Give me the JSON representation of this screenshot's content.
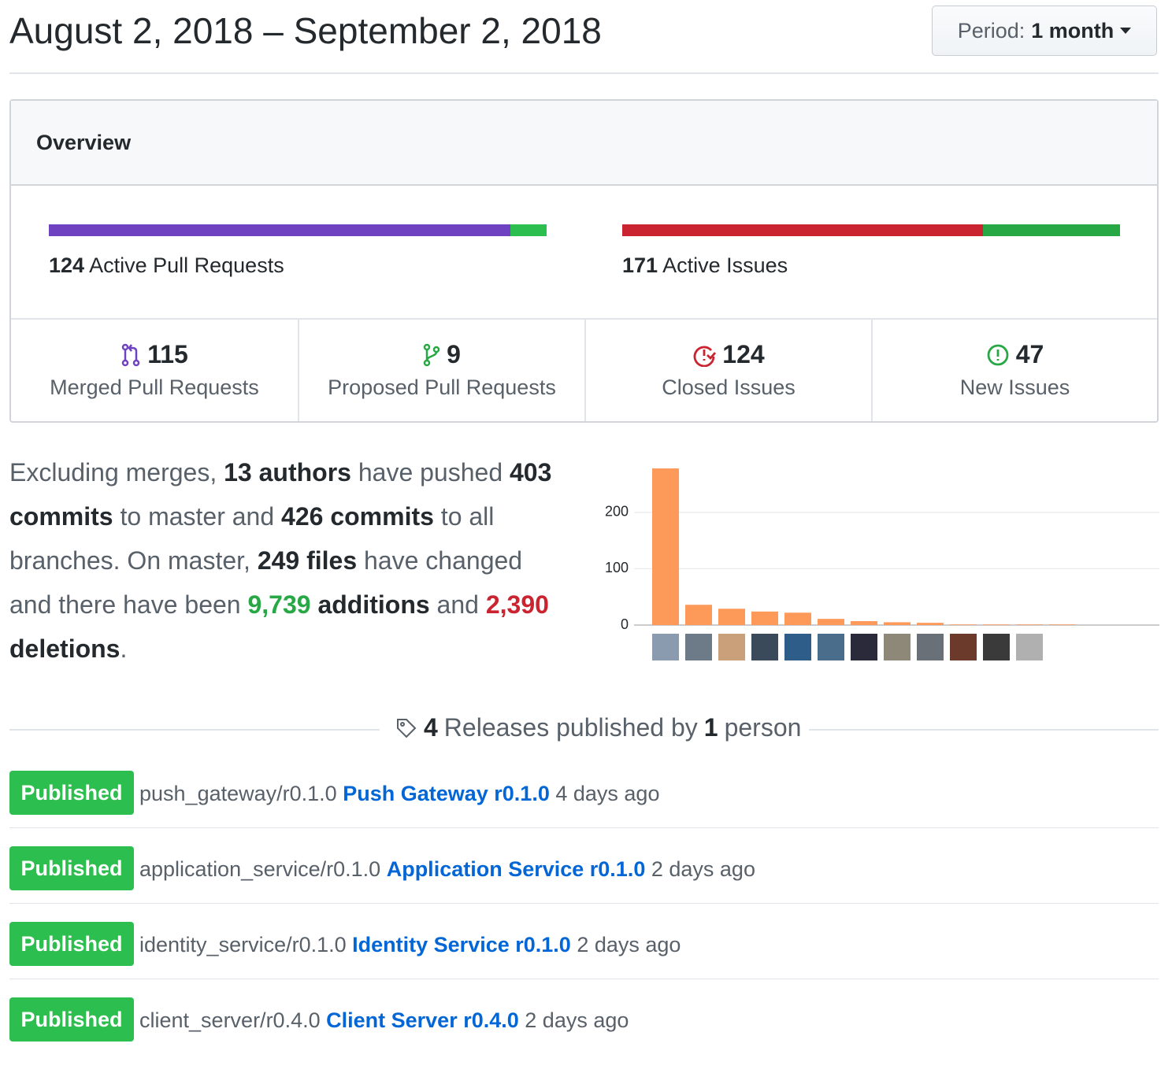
{
  "header": {
    "title": "August 2, 2018 – September 2, 2018",
    "period_label": "Period:",
    "period_value": "1 month"
  },
  "overview": {
    "title": "Overview",
    "active_prs": {
      "count": 124,
      "label": "Active Pull Requests"
    },
    "active_issues": {
      "count": 171,
      "label": "Active Issues"
    },
    "stats": [
      {
        "value": 115,
        "label": "Merged Pull Requests",
        "color": "#6f42c1"
      },
      {
        "value": 9,
        "label": "Proposed Pull Requests",
        "color": "#2cbe4e"
      },
      {
        "value": 124,
        "label": "Closed Issues",
        "color": "#cb2431"
      },
      {
        "value": 47,
        "label": "New Issues",
        "color": "#28a745"
      }
    ]
  },
  "summary": [
    {
      "text": "Excluding merges, "
    },
    {
      "text": "13 authors",
      "style": "bold"
    },
    {
      "text": " have pushed "
    },
    {
      "text": "403 commits",
      "style": "bold"
    },
    {
      "text": " to master and "
    },
    {
      "text": "426 commits",
      "style": "bold"
    },
    {
      "text": " to all branches. On master, "
    },
    {
      "text": "249 files",
      "style": "bold"
    },
    {
      "text": " have changed and there have been "
    },
    {
      "text": "9,739",
      "style": "green"
    },
    {
      "text": " additions",
      "style": "bold"
    },
    {
      "text": " and "
    },
    {
      "text": "2,390",
      "style": "red"
    },
    {
      "text": " deletions",
      "style": "bold"
    },
    {
      "text": "."
    }
  ],
  "chart_data": {
    "type": "bar",
    "values": [
      278,
      36,
      29,
      24,
      22,
      11,
      7,
      5,
      4,
      1,
      1,
      1,
      1
    ],
    "color": "#fd9a5a",
    "ylim": [
      0,
      285
    ],
    "yticks": [
      0,
      100,
      200
    ],
    "grid": true
  },
  "releases": {
    "count": 4,
    "text_middle": "Releases published by",
    "people": 1,
    "text_end": "person",
    "items": [
      {
        "badge": "Published",
        "tag": "push_gateway/r0.1.0",
        "name": "Push Gateway r0.1.0",
        "time": "4 days ago"
      },
      {
        "badge": "Published",
        "tag": "application_service/r0.1.0",
        "name": "Application Service r0.1.0",
        "time": "2 days ago"
      },
      {
        "badge": "Published",
        "tag": "identity_service/r0.1.0",
        "name": "Identity Service r0.1.0",
        "time": "2 days ago"
      },
      {
        "badge": "Published",
        "tag": "client_server/r0.4.0",
        "name": "Client Server r0.4.0",
        "time": "2 days ago"
      }
    ]
  }
}
